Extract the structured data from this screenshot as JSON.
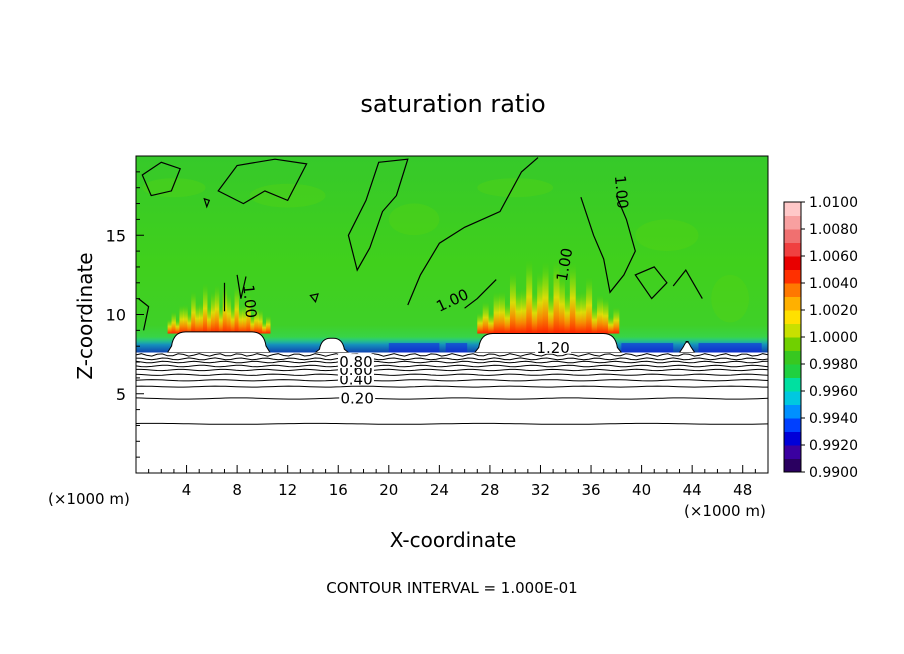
{
  "chart_data": {
    "type": "heatmap",
    "title": "saturation ratio",
    "xlabel": "X-coordinate",
    "ylabel": "Z-coordinate",
    "x_unit_left": "(×1000 m)",
    "x_unit_right": "(×1000 m)",
    "xlim": [
      0,
      50
    ],
    "ylim": [
      0,
      20
    ],
    "x_ticks": [
      4,
      8,
      12,
      16,
      20,
      24,
      28,
      32,
      36,
      40,
      44,
      48
    ],
    "y_ticks": [
      5,
      10,
      15
    ],
    "footer": "CONTOUR INTERVAL = 1.000E-01",
    "colorbar": {
      "min": 0.99,
      "max": 1.01,
      "labels": [
        "1.0100",
        "1.0080",
        "1.0060",
        "1.0040",
        "1.0020",
        "1.0000",
        "0.9980",
        "0.9960",
        "0.9940",
        "0.9920",
        "0.9900"
      ],
      "colors": [
        "#2a0060",
        "#3a00a0",
        "#0000d8",
        "#0040ff",
        "#0090ff",
        "#00c8e0",
        "#00e0a0",
        "#20d040",
        "#38c820",
        "#70d000",
        "#c8e000",
        "#ffe000",
        "#ffb000",
        "#ff7800",
        "#ff3000",
        "#e80000",
        "#f04040",
        "#f07070",
        "#f8a0a0",
        "#ffc8c8"
      ]
    },
    "contour_labels": [
      {
        "text": "0.20",
        "x": 17.5,
        "y": 4.7
      },
      {
        "text": "0.40",
        "x": 17.4,
        "y": 5.9
      },
      {
        "text": "0.60",
        "x": 17.4,
        "y": 6.5
      },
      {
        "text": "0.80",
        "x": 17.4,
        "y": 7.0
      },
      {
        "text": "1.20",
        "x": 33.0,
        "y": 7.9
      },
      {
        "text": "1.00",
        "x": 25.2,
        "y": 10.6
      },
      {
        "text": "1.00",
        "x": 8.6,
        "y": 10.8
      },
      {
        "text": "1.00",
        "x": 34.3,
        "y": 13.1
      },
      {
        "text": "1.00",
        "x": 38.0,
        "y": 17.7
      }
    ],
    "cloud_regions": [
      {
        "x": [
          2.5,
          10.6
        ],
        "base": 7.6,
        "top": 8.9
      },
      {
        "x": [
          14.2,
          16.8
        ],
        "base": 7.6,
        "top": 8.5
      },
      {
        "x": [
          26.8,
          38.4
        ],
        "base": 7.6,
        "top": 8.8
      },
      {
        "x": [
          43.0,
          44.2
        ],
        "base": 7.6,
        "top": 8.3
      }
    ]
  }
}
